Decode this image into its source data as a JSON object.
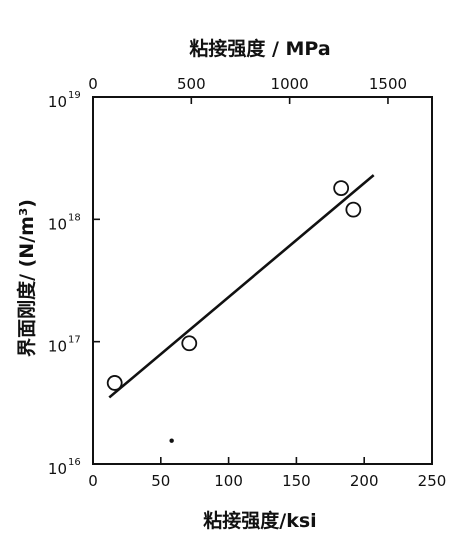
{
  "chart_data": {
    "type": "scatter",
    "xlabel_bottom": "粘接强度/ksi",
    "xlabel_top": "粘接强度 / MPa",
    "ylabel": "界面刚度/ (N/m³)",
    "y_scale": "log",
    "xlim_bottom": [
      0,
      250
    ],
    "xlim_top_mpa": [
      0,
      1724
    ],
    "ylim": [
      1e+16,
      1e+19
    ],
    "bottom_ticks": [
      "0",
      "50",
      "100",
      "150",
      "200",
      "250"
    ],
    "top_ticks": [
      "0",
      "500",
      "1000",
      "1500"
    ],
    "y_ticks": [
      {
        "base": "10",
        "exp": "16"
      },
      {
        "base": "10",
        "exp": "17"
      },
      {
        "base": "10",
        "exp": "18"
      },
      {
        "base": "10",
        "exp": "19"
      }
    ],
    "grid": false,
    "legend": "none",
    "series": [
      {
        "values": [
          {
            "x": 16,
            "y": 4.6e+16
          },
          {
            "x": 71,
            "y": 9.7e+16
          },
          {
            "x": 183,
            "y": 1.8e+18
          },
          {
            "x": 192,
            "y": 1.2e+18
          }
        ]
      }
    ],
    "isolated_points": [
      {
        "x": 58,
        "y": 1.55e+16
      }
    ],
    "trend_line": {
      "from": {
        "x": 12,
        "y": 3.5e+16
      },
      "to": {
        "x": 207,
        "y": 2.3e+18
      }
    }
  }
}
